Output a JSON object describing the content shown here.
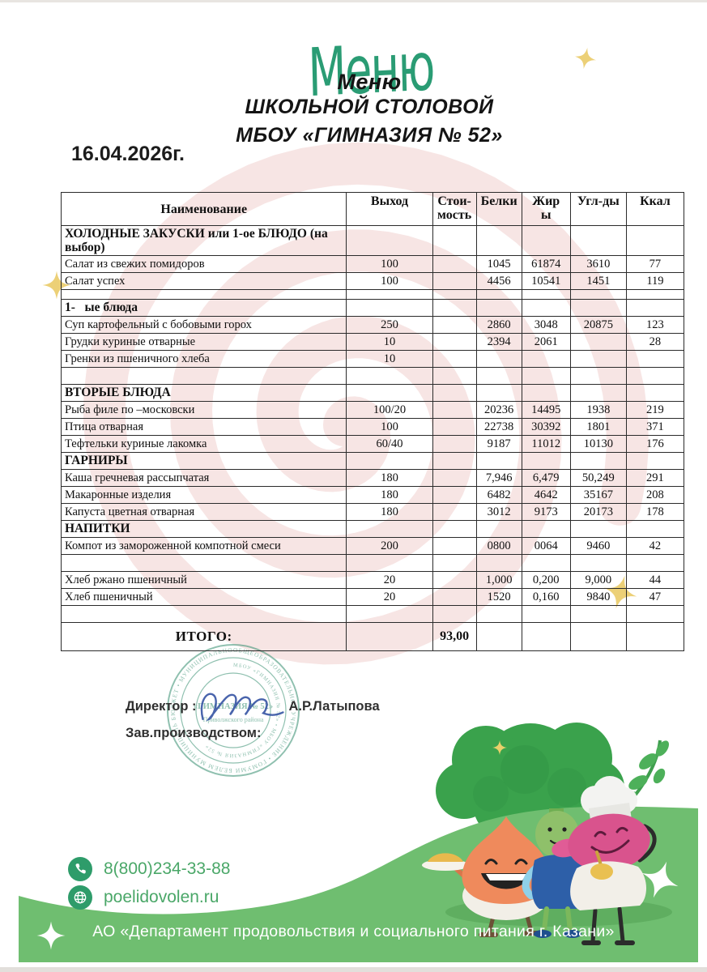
{
  "title": {
    "handwritten": "Меню",
    "printed_line1": "Меню",
    "printed_line2": "ШКОЛЬНОЙ СТОЛОВОЙ",
    "printed_line3": "МБОУ «ГИМНАЗИЯ № 52»"
  },
  "date": "16.04.2026г.",
  "table": {
    "headers": [
      "Наименование",
      "Выход",
      "Стои-\nмость",
      "Белки",
      "Жир\nы",
      "Угл-ды",
      "Ккал"
    ],
    "rows": [
      {
        "type": "section2",
        "name": "ХОЛОДНЫЕ ЗАКУСКИ или 1-ое БЛЮДО (на выбор)",
        "out": "",
        "cost": "",
        "protein": "",
        "fat": "",
        "carbs": "",
        "kcal": ""
      },
      {
        "type": "item",
        "name": "Салат из свежих помидоров",
        "out": "100",
        "cost": "",
        "protein": "1045",
        "fat": "61874",
        "carbs": "3610",
        "kcal": "77"
      },
      {
        "type": "item",
        "name": "Салат успех",
        "out": "100",
        "cost": "",
        "protein": "4456",
        "fat": "10541",
        "carbs": "1451",
        "kcal": "119"
      },
      {
        "type": "thin",
        "name": "",
        "out": "",
        "cost": "",
        "protein": "",
        "fat": "",
        "carbs": "",
        "kcal": ""
      },
      {
        "type": "sectionindent",
        "name": "1-   ые блюда",
        "out": "",
        "cost": "",
        "protein": "",
        "fat": "",
        "carbs": "",
        "kcal": ""
      },
      {
        "type": "item",
        "name": "Суп картофельный с бобовыми горох",
        "out": "250",
        "cost": "",
        "protein": "2860",
        "fat": "3048",
        "carbs": "20875",
        "kcal": "123"
      },
      {
        "type": "item",
        "name": "Грудки куриные отварные",
        "out": "10",
        "cost": "",
        "protein": "2394",
        "fat": "2061",
        "carbs": "",
        "kcal": "28"
      },
      {
        "type": "item",
        "name": "Гренки из пшеничного хлеба",
        "out": "10",
        "cost": "",
        "protein": "",
        "fat": "",
        "carbs": "",
        "kcal": ""
      },
      {
        "type": "empty",
        "name": "",
        "out": "",
        "cost": "",
        "protein": "",
        "fat": "",
        "carbs": "",
        "kcal": ""
      },
      {
        "type": "section",
        "name": "ВТОРЫЕ БЛЮДА",
        "out": "",
        "cost": "",
        "protein": "",
        "fat": "",
        "carbs": "",
        "kcal": ""
      },
      {
        "type": "item",
        "name": "Рыба филе по –московски",
        "out": "100/20",
        "cost": "",
        "protein": "20236",
        "fat": "14495",
        "carbs": "1938",
        "kcal": "219"
      },
      {
        "type": "item",
        "name": "Птица отварная",
        "out": "100",
        "cost": "",
        "protein": "22738",
        "fat": "30392",
        "carbs": "1801",
        "kcal": "371"
      },
      {
        "type": "item",
        "name": "Тефтельки куриные лакомка",
        "out": "60/40",
        "cost": "",
        "protein": "9187",
        "fat": "11012",
        "carbs": "10130",
        "kcal": "176"
      },
      {
        "type": "section",
        "name": "ГАРНИРЫ",
        "out": "",
        "cost": "",
        "protein": "",
        "fat": "",
        "carbs": "",
        "kcal": ""
      },
      {
        "type": "item",
        "name": "Каша гречневая рассыпчатая",
        "out": "180",
        "cost": "",
        "protein": "7,946",
        "fat": "6,479",
        "carbs": "50,249",
        "kcal": "291"
      },
      {
        "type": "item",
        "name": "Макаронные изделия",
        "out": "180",
        "cost": "",
        "protein": "6482",
        "fat": "4642",
        "carbs": "35167",
        "kcal": "208"
      },
      {
        "type": "item",
        "name": "Капуста цветная отварная",
        "out": "180",
        "cost": "",
        "protein": "3012",
        "fat": "9173",
        "carbs": "20173",
        "kcal": "178"
      },
      {
        "type": "section",
        "name": "НАПИТКИ",
        "out": "",
        "cost": "",
        "protein": "",
        "fat": "",
        "carbs": "",
        "kcal": ""
      },
      {
        "type": "item",
        "name": "Компот из замороженной компотной смеси",
        "out": "200",
        "cost": "",
        "protein": "0800",
        "fat": "0064",
        "carbs": "9460",
        "kcal": "42"
      },
      {
        "type": "empty",
        "name": "",
        "out": "",
        "cost": "",
        "protein": "",
        "fat": "",
        "carbs": "",
        "kcal": ""
      },
      {
        "type": "item",
        "name": "Хлеб ржано пшеничный",
        "out": "20",
        "cost": "",
        "protein": "1,000",
        "fat": "0,200",
        "carbs": "9,000",
        "kcal": "44"
      },
      {
        "type": "item",
        "name": "Хлеб пшеничный",
        "out": "20",
        "cost": "",
        "protein": "1520",
        "fat": "0,160",
        "carbs": "9840",
        "kcal": "47"
      },
      {
        "type": "empty",
        "name": "",
        "out": "",
        "cost": "",
        "protein": "",
        "fat": "",
        "carbs": "",
        "kcal": ""
      },
      {
        "type": "total",
        "name": "ИТОГО:",
        "out": "",
        "cost": "93,00",
        "protein": "",
        "fat": "",
        "carbs": "",
        "kcal": ""
      }
    ]
  },
  "signature": {
    "director_label": "Директор :",
    "director_name": "А.Р.Латыпова",
    "production_label": "Зав.производством:"
  },
  "stamp": {
    "ring_outer": "ОБЩЕОБРАЗОВАТЕЛЬНОЕ УЧРЕЖДЕНИЕ  •  ГОМУМИ БЕЛЕМ МУНИЦИПАЛЬ БЮДЖЕТ  •  МУНИЦИПАЛЬНОЕ",
    "ring_inner": "МБОУ «ГИМНАЗИЯ № 52»  •  МБОУ «ГИМНАЗИЯ № 52»",
    "center_line1": "«ГИМНАЗИЯ № 52»",
    "center_line2": "Приволжского района"
  },
  "contacts": {
    "phone": "8(800)234-33-88",
    "site": "poelidovolen.ru"
  },
  "footer": {
    "text": "АО «Департамент продовольствия и социального питания г. Казани»"
  },
  "icons": {
    "phone_icon": "phone-handset in green circle",
    "globe_icon": "globe in green circle",
    "sparkle_icon": "four-point sparkle star"
  },
  "colors": {
    "accent_green": "#2a9c74",
    "band_green": "#6fbe70",
    "contact_text_green": "#4aa768",
    "contact_circle_green": "#2e9c6a",
    "spiral_pink": "#efccc9",
    "sparkle_yellow": "#ecd077",
    "signature_blue": "#3a57a5",
    "stamp_green": "#3f9477"
  }
}
